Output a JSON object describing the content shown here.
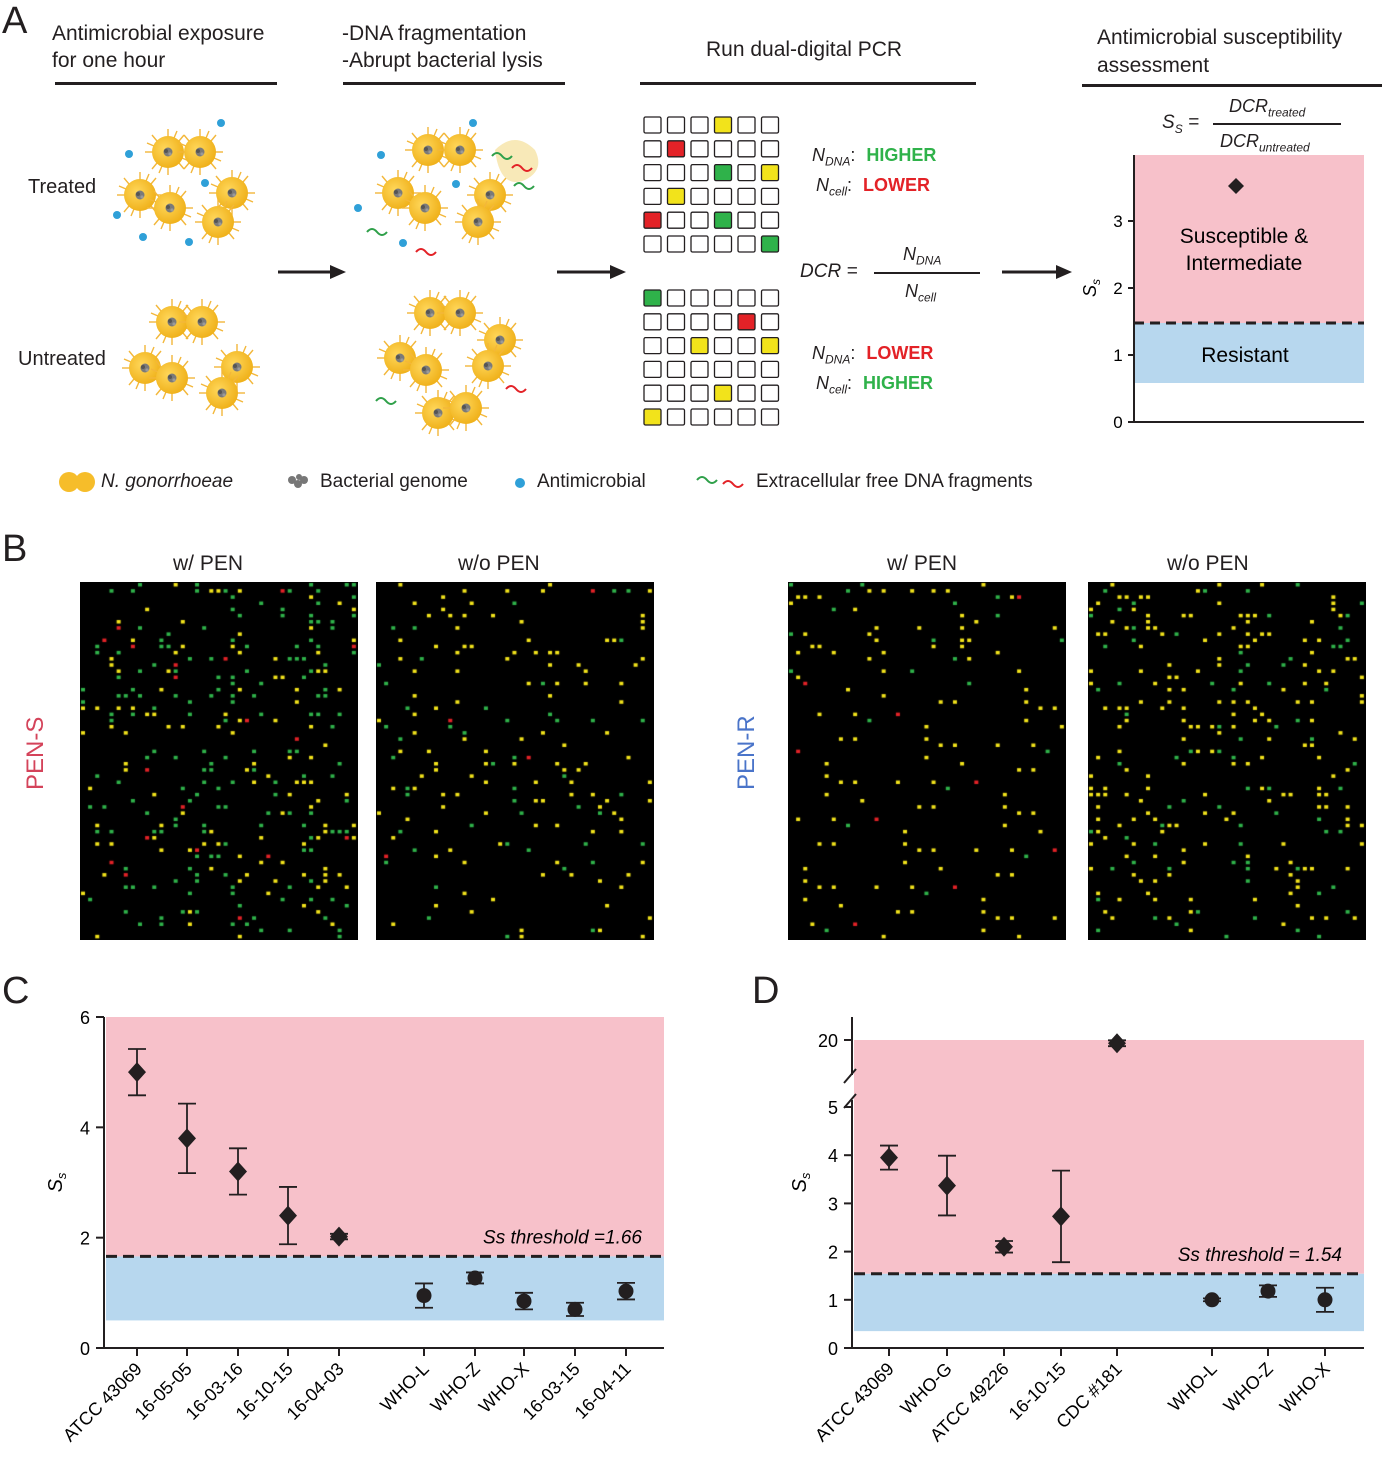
{
  "panelA": {
    "letter": "A",
    "step1_title": [
      "Antimicrobial exposure",
      "for one hour"
    ],
    "step2_title": [
      "-DNA fragmentation",
      "-Abrupt bacterial lysis"
    ],
    "step3_title": "Run dual-digital PCR",
    "step4_title": [
      "Antimicrobial susceptibility",
      "assessment"
    ],
    "row_treated": "Treated",
    "row_untreated": "Untreated",
    "treated_grid": [
      "nnnynn",
      "nrnnnn",
      "nnngny",
      "nynnnn",
      "rnngnn",
      "nnnnng"
    ],
    "untreated_grid": [
      "gnnnnn",
      "nnnnrn",
      "nnynny",
      "nnnnnn",
      "nnnynn",
      "ynnnnn"
    ],
    "n_dna": "NDNA",
    "n_cell": "Ncell",
    "higher": "HIGHER",
    "lower": "LOWER",
    "dcr": "DCR",
    "dcr_num": "NDNA",
    "dcr_den": "Ncell",
    "ss_eq_num": "DCRtreated",
    "ss_eq_den": "DCRuntreated",
    "ss_label": "Ss",
    "ss_axis_ticks": [
      0,
      1,
      2,
      3
    ],
    "ss_point": 3.5,
    "susceptible_label": [
      "Susceptible &",
      "Intermediate"
    ],
    "resistant_label": "Resistant",
    "legend": [
      "N. gonorrhoeae",
      "Bacterial genome",
      "Antimicrobial",
      "Extracellular free DNA fragments"
    ],
    "colors": {
      "green": "#2fb24a",
      "red": "#e32227",
      "yellow": "#f2e31b",
      "pink": "#f7c1ca",
      "blue": "#b7d7ee",
      "bacteria": "#f6bd2a"
    }
  },
  "panelB": {
    "letter": "B",
    "pen_s": "PEN-S",
    "pen_r": "PEN-R",
    "with_pen": "w/ PEN",
    "without_pen": "w/o PEN",
    "pen_s_color": "#d4435a",
    "pen_r_color": "#4a74c9"
  },
  "chart_data": [
    {
      "panel": "C",
      "type": "scatter",
      "categories": [
        "ATCC 43069",
        "16-05-05",
        "16-03-16",
        "16-10-15",
        "16-04-03",
        "WHO-L",
        "WHO-Z",
        "WHO-X",
        "16-03-15",
        "16-04-11"
      ],
      "values": [
        5.0,
        3.8,
        3.2,
        2.4,
        2.02,
        0.95,
        1.27,
        0.85,
        0.7,
        1.03
      ],
      "errors": [
        0.42,
        0.63,
        0.42,
        0.52,
        0.05,
        0.22,
        0.1,
        0.15,
        0.12,
        0.15
      ],
      "markers": [
        "diamond",
        "diamond",
        "diamond",
        "diamond",
        "diamond",
        "circle",
        "circle",
        "circle",
        "circle",
        "circle"
      ],
      "ylabel": "Ss",
      "ylim": [
        0,
        6
      ],
      "yticks": [
        0,
        2,
        4,
        6
      ],
      "threshold": 1.66,
      "threshold_label": "Ss threshold =1.66",
      "susceptible_band": [
        1.66,
        6
      ],
      "resistant_band": [
        0.5,
        1.66
      ]
    },
    {
      "panel": "D",
      "type": "scatter",
      "categories": [
        "ATCC 43069",
        "WHO-G",
        "ATCC 49226",
        "16-10-15",
        "CDC #181",
        "WHO-L",
        "WHO-Z",
        "WHO-X"
      ],
      "values": [
        3.95,
        3.37,
        2.1,
        2.73,
        19.0,
        1.0,
        1.18,
        1.0
      ],
      "errors": [
        0.25,
        0.62,
        0.12,
        0.95,
        0.9,
        0.03,
        0.12,
        0.25
      ],
      "markers": [
        "diamond",
        "diamond",
        "diamond",
        "diamond",
        "diamond",
        "circle",
        "circle",
        "circle"
      ],
      "ylabel": "Ss",
      "ylim": [
        0,
        20
      ],
      "yticks": [
        0,
        1,
        2,
        3,
        4,
        5,
        20
      ],
      "axis_break": [
        5,
        20
      ],
      "threshold": 1.54,
      "threshold_label": "Ss threshold = 1.54",
      "susceptible_band": [
        1.54,
        20
      ],
      "resistant_band": [
        0.35,
        1.54
      ]
    }
  ]
}
